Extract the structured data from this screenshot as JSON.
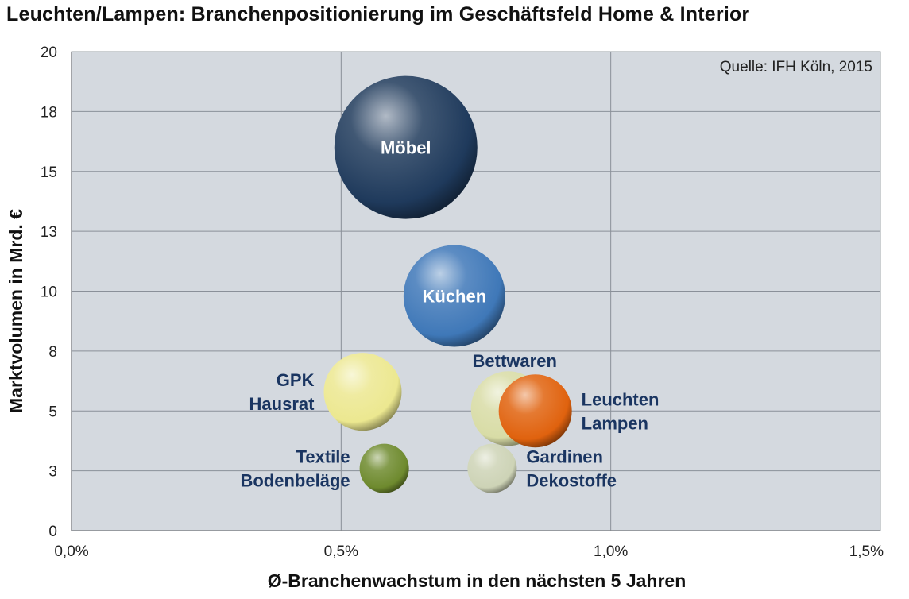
{
  "chart_data": {
    "type": "scatter",
    "title": "Leuchten/Lampen: Branchenpositionierung im Geschäftsfeld Home & Interior",
    "xlabel": "Ø-Branchenwachstum in den nächsten 5 Jahren",
    "ylabel": "Marktvolumen in Mrd. €",
    "source": "Quelle: IFH Köln, 2015",
    "xlim": [
      0,
      1.5
    ],
    "ylim": [
      0,
      20
    ],
    "x_ticks": [
      "0,0%",
      "0,5%",
      "1,0%",
      "1,5%"
    ],
    "y_ticks": [
      "0",
      "3",
      "5",
      "8",
      "10",
      "13",
      "15",
      "18",
      "20"
    ],
    "grid": true,
    "series": [
      {
        "label": [
          "Möbel"
        ],
        "x": 0.62,
        "y": 16.0,
        "size": 90,
        "color": "#1f3a5c",
        "label_color": "#ffffff",
        "label_pos": "inside"
      },
      {
        "label": [
          "Küchen"
        ],
        "x": 0.71,
        "y": 9.8,
        "size": 64,
        "color": "#3f78b8",
        "label_color": "#ffffff",
        "label_pos": "inside"
      },
      {
        "label": [
          "Bettwaren"
        ],
        "x": 0.81,
        "y": 5.1,
        "size": 47,
        "color": "#d8dca6",
        "label_color": "#1a3561",
        "label_pos": "above"
      },
      {
        "label": [
          "GPK",
          "Hausrat"
        ],
        "x": 0.54,
        "y": 5.8,
        "size": 49,
        "color": "#ece890",
        "label_color": "#1a3561",
        "label_pos": "left"
      },
      {
        "label": [
          "Leuchten",
          "Lampen"
        ],
        "x": 0.86,
        "y": 5.0,
        "size": 46,
        "color": "#e0620e",
        "label_color": "#1a3561",
        "label_pos": "right"
      },
      {
        "label": [
          "Textile",
          "Bodenbeläge"
        ],
        "x": 0.58,
        "y": 2.6,
        "size": 31,
        "color": "#6e8a2e",
        "label_color": "#1a3561",
        "label_pos": "left"
      },
      {
        "label": [
          "Gardinen",
          "Dekostoffe"
        ],
        "x": 0.78,
        "y": 2.6,
        "size": 31,
        "color": "#cdd3b6",
        "label_color": "#1a3561",
        "label_pos": "right"
      }
    ]
  }
}
